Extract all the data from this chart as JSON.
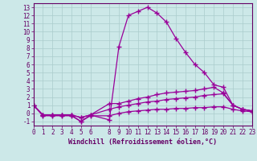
{
  "background_color": "#cce8e8",
  "grid_color": "#aacccc",
  "line_color": "#990099",
  "marker": "+",
  "markersize": 4,
  "linewidth": 0.9,
  "markeredgewidth": 1.0,
  "xlim": [
    0,
    23
  ],
  "ylim": [
    -1.5,
    13.5
  ],
  "yticks": [
    -1,
    0,
    1,
    2,
    3,
    4,
    5,
    6,
    7,
    8,
    9,
    10,
    11,
    12,
    13
  ],
  "xticks": [
    0,
    1,
    2,
    3,
    4,
    5,
    6,
    8,
    9,
    10,
    11,
    12,
    13,
    14,
    15,
    16,
    17,
    18,
    19,
    20,
    21,
    22,
    23
  ],
  "xlabel": "Windchill (Refroidissement éolien,°C)",
  "xlabel_fontsize": 6,
  "tick_fontsize": 5.5,
  "series": [
    {
      "x": [
        0,
        1,
        2,
        3,
        4,
        5,
        6,
        8,
        9,
        10,
        11,
        12,
        13,
        14,
        15,
        16,
        17,
        18,
        19,
        20,
        21,
        22,
        23
      ],
      "y": [
        1.0,
        -0.2,
        -0.2,
        -0.2,
        -0.2,
        -1.0,
        -0.2,
        -0.8,
        8.2,
        12.0,
        12.5,
        13.0,
        12.3,
        11.2,
        9.2,
        7.5,
        6.0,
        5.0,
        3.5,
        3.2,
        1.0,
        0.5,
        0.3
      ]
    },
    {
      "x": [
        0,
        1,
        2,
        3,
        4,
        5,
        6,
        8,
        9,
        10,
        11,
        12,
        13,
        14,
        15,
        16,
        17,
        18,
        19,
        20,
        21,
        22,
        23
      ],
      "y": [
        1.0,
        -0.2,
        -0.2,
        -0.2,
        -0.2,
        -0.5,
        -0.2,
        1.2,
        1.2,
        1.5,
        1.8,
        2.0,
        2.3,
        2.5,
        2.6,
        2.7,
        2.8,
        3.0,
        3.2,
        2.5,
        1.0,
        0.5,
        0.3
      ]
    },
    {
      "x": [
        0,
        1,
        2,
        3,
        4,
        5,
        6,
        8,
        9,
        10,
        11,
        12,
        13,
        14,
        15,
        16,
        17,
        18,
        19,
        20,
        21,
        22,
        23
      ],
      "y": [
        1.0,
        -0.2,
        -0.2,
        -0.2,
        -0.2,
        -0.5,
        -0.2,
        0.5,
        0.8,
        1.0,
        1.2,
        1.4,
        1.5,
        1.7,
        1.8,
        1.9,
        2.0,
        2.2,
        2.3,
        2.4,
        1.0,
        0.5,
        0.3
      ]
    },
    {
      "x": [
        0,
        1,
        2,
        3,
        4,
        5,
        6,
        8,
        9,
        10,
        11,
        12,
        13,
        14,
        15,
        16,
        17,
        18,
        19,
        20,
        21,
        22,
        23
      ],
      "y": [
        1.0,
        -0.3,
        -0.3,
        -0.3,
        -0.3,
        -1.0,
        -0.3,
        -0.3,
        0.0,
        0.2,
        0.3,
        0.4,
        0.5,
        0.5,
        0.6,
        0.6,
        0.7,
        0.7,
        0.8,
        0.8,
        0.5,
        0.3,
        0.2
      ]
    }
  ]
}
